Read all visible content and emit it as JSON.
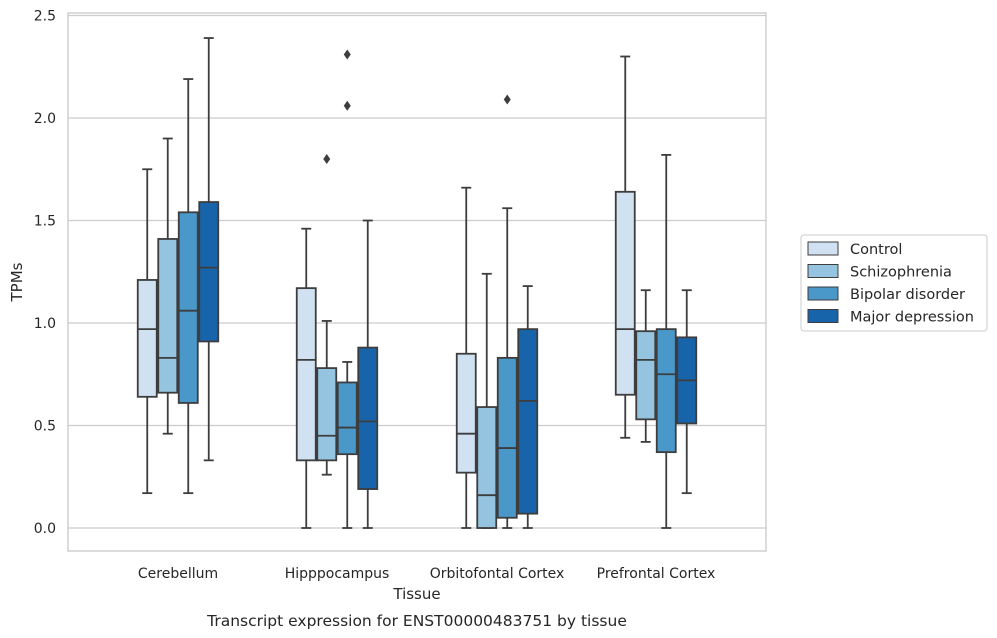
{
  "chart_data": {
    "type": "boxplot",
    "caption": "Transcript expression for ENST00000483751 by tissue",
    "xlabel": "Tissue",
    "ylabel": "TPMs",
    "ylim": [
      -0.12,
      2.52
    ],
    "yticks": [
      0.0,
      0.5,
      1.0,
      1.5,
      2.0,
      2.5
    ],
    "ytick_labels": [
      "0.0",
      "0.5",
      "1.0",
      "1.5",
      "2.0",
      "2.5"
    ],
    "grid": "horizontal",
    "legend_position": "right",
    "categories": [
      "Cerebellum",
      "Hipppocampus",
      "Orbitofontal Cortex",
      "Prefrontal Cortex"
    ],
    "series": [
      {
        "name": "Control",
        "color": "#d0e1f2",
        "boxes": [
          {
            "whislo": 0.17,
            "q1": 0.64,
            "med": 0.97,
            "q3": 1.21,
            "whishi": 1.75,
            "fliers": []
          },
          {
            "whislo": 0.0,
            "q1": 0.33,
            "med": 0.82,
            "q3": 1.17,
            "whishi": 1.46,
            "fliers": []
          },
          {
            "whislo": 0.0,
            "q1": 0.27,
            "med": 0.46,
            "q3": 0.85,
            "whishi": 1.66,
            "fliers": []
          },
          {
            "whislo": 0.44,
            "q1": 0.65,
            "med": 0.97,
            "q3": 1.64,
            "whishi": 2.3,
            "fliers": []
          }
        ]
      },
      {
        "name": "Schizophrenia",
        "color": "#94c4df",
        "boxes": [
          {
            "whislo": 0.46,
            "q1": 0.66,
            "med": 0.83,
            "q3": 1.41,
            "whishi": 1.9,
            "fliers": []
          },
          {
            "whislo": 0.26,
            "q1": 0.33,
            "med": 0.45,
            "q3": 0.78,
            "whishi": 1.01,
            "fliers": [
              1.8
            ]
          },
          {
            "whislo": 0.0,
            "q1": 0.0,
            "med": 0.16,
            "q3": 0.59,
            "whishi": 1.24,
            "fliers": []
          },
          {
            "whislo": 0.42,
            "q1": 0.53,
            "med": 0.82,
            "q3": 0.96,
            "whishi": 1.16,
            "fliers": []
          }
        ]
      },
      {
        "name": "Bipolar disorder",
        "color": "#4a98c9",
        "boxes": [
          {
            "whislo": 0.17,
            "q1": 0.61,
            "med": 1.06,
            "q3": 1.54,
            "whishi": 2.19,
            "fliers": []
          },
          {
            "whislo": 0.0,
            "q1": 0.36,
            "med": 0.49,
            "q3": 0.71,
            "whishi": 0.81,
            "fliers": [
              2.06,
              2.31
            ]
          },
          {
            "whislo": 0.0,
            "q1": 0.05,
            "med": 0.39,
            "q3": 0.83,
            "whishi": 1.56,
            "fliers": [
              2.09
            ]
          },
          {
            "whislo": 0.0,
            "q1": 0.37,
            "med": 0.75,
            "q3": 0.97,
            "whishi": 1.82,
            "fliers": []
          }
        ]
      },
      {
        "name": "Major depression",
        "color": "#1764ab",
        "boxes": [
          {
            "whislo": 0.33,
            "q1": 0.91,
            "med": 1.27,
            "q3": 1.59,
            "whishi": 2.39,
            "fliers": []
          },
          {
            "whislo": 0.0,
            "q1": 0.19,
            "med": 0.52,
            "q3": 0.88,
            "whishi": 1.5,
            "fliers": []
          },
          {
            "whislo": 0.0,
            "q1": 0.07,
            "med": 0.62,
            "q3": 0.97,
            "whishi": 1.18,
            "fliers": []
          },
          {
            "whislo": 0.17,
            "q1": 0.51,
            "med": 0.72,
            "q3": 0.93,
            "whishi": 1.16,
            "fliers": []
          }
        ]
      }
    ]
  }
}
